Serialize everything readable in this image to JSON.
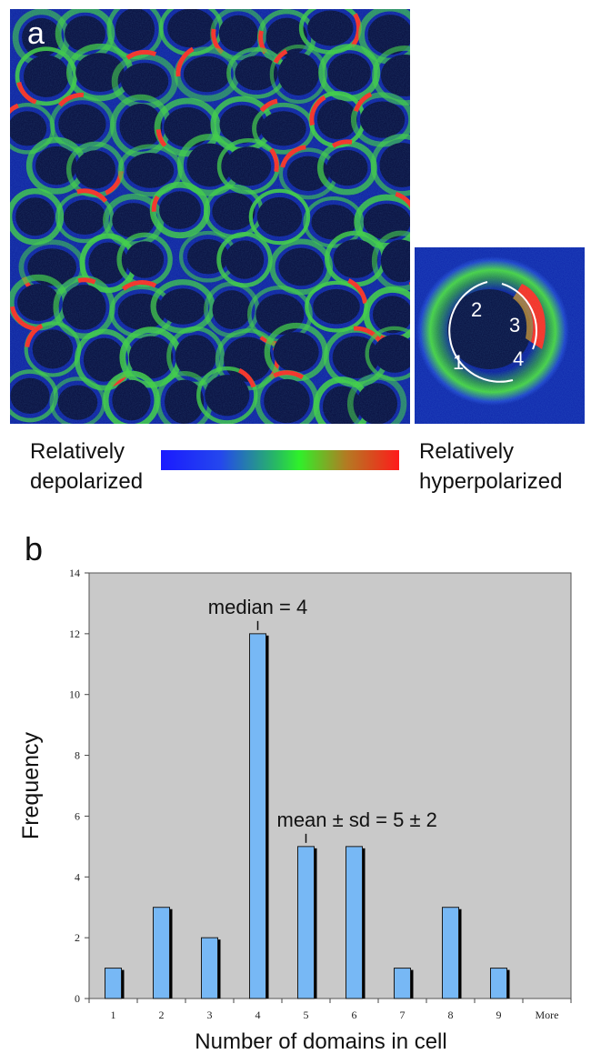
{
  "panels": {
    "a": {
      "letter": "a",
      "inset_labels": [
        "1",
        "2",
        "3",
        "4"
      ],
      "legend_left": [
        "Relatively",
        "depolarized"
      ],
      "legend_right": [
        "Relatively",
        "hyperpolarized"
      ],
      "colorbar_colors": [
        "#1a1aff",
        "#2ff02a",
        "#ff1a1a"
      ]
    },
    "b": {
      "letter": "b"
    }
  },
  "chart_data": {
    "type": "bar",
    "categories": [
      "1",
      "2",
      "3",
      "4",
      "5",
      "6",
      "7",
      "8",
      "9",
      "More"
    ],
    "values": [
      1,
      3,
      2,
      12,
      5,
      5,
      1,
      3,
      1,
      0
    ],
    "xlabel": "Number of domains in cell",
    "ylabel": "Frequency",
    "ylim": [
      0,
      14
    ],
    "yticks": [
      "0",
      "2",
      "4",
      "6",
      "8",
      "10",
      "12",
      "14"
    ],
    "grid": false,
    "legend": "none",
    "annotations": [
      {
        "text": "median = 4",
        "category": "4"
      },
      {
        "text": "mean  ± sd = 5 ± 2",
        "category": "5"
      }
    ],
    "bar_color": "#77b8f5",
    "plot_background": "#c9c9c9"
  }
}
